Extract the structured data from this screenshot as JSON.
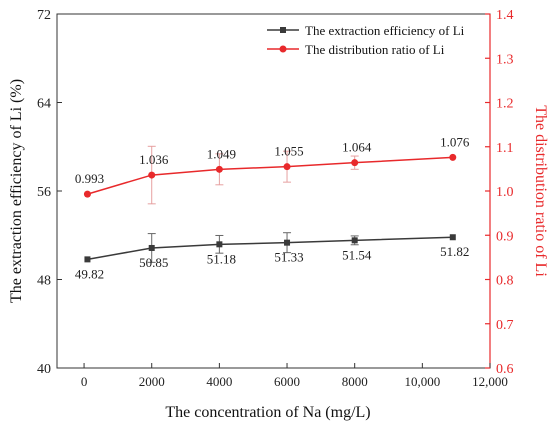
{
  "chart_data": {
    "type": "line",
    "xlabel": "The concentration of Na (mg/L)",
    "y_left_label": "The extraction efficiency of Li (%)",
    "y_right_label": "The distribution ratio of Li",
    "x_ticks": [
      0,
      2000,
      4000,
      6000,
      8000,
      10000,
      12000
    ],
    "x_tick_labels": [
      "0",
      "2000",
      "4000",
      "6000",
      "8000",
      "10,000",
      "12,000"
    ],
    "xlim": [
      -800,
      12000
    ],
    "y_left_ticks": [
      40,
      48,
      56,
      64,
      72
    ],
    "y_left_lim": [
      40,
      72
    ],
    "y_right_ticks": [
      0.6,
      0.7,
      0.8,
      0.9,
      1.0,
      1.1,
      1.2,
      1.3,
      1.4
    ],
    "y_right_tick_labels": [
      "0.6",
      "0.7",
      "0.8",
      "0.9",
      "1.0",
      "1.1",
      "1.2",
      "1.3",
      "1.4"
    ],
    "y_right_lim": [
      0.6,
      1.4
    ],
    "legend_position": "top-right",
    "series": [
      {
        "name": "The extraction efficiency of Li",
        "axis": "left",
        "color": "#3a3a3a",
        "marker": "square",
        "x": [
          100,
          2000,
          4000,
          6000,
          8000,
          10900
        ],
        "values": [
          49.82,
          50.85,
          51.18,
          51.33,
          51.54,
          51.82
        ],
        "value_labels": [
          "49.82",
          "50.85",
          "51.18",
          "51.33",
          "51.54",
          "51.82"
        ],
        "errors": [
          0,
          1.3,
          0.8,
          0.9,
          0.4,
          0
        ]
      },
      {
        "name": "The distribution ratio of Li",
        "axis": "right",
        "color": "#e8292b",
        "marker": "circle",
        "x": [
          100,
          2000,
          4000,
          6000,
          8000,
          10900
        ],
        "values": [
          0.993,
          1.036,
          1.049,
          1.055,
          1.064,
          1.076
        ],
        "value_labels": [
          "0.993",
          "1.036",
          "1.049",
          "1.055",
          "1.064",
          "1.076"
        ],
        "errors": [
          0,
          0.065,
          0.035,
          0.035,
          0.015,
          0
        ]
      }
    ]
  }
}
